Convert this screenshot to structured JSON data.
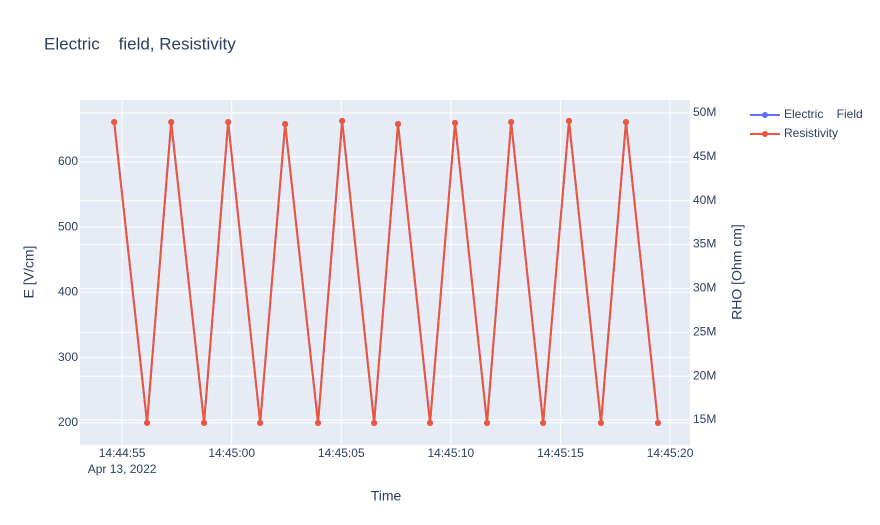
{
  "chart_data": {
    "type": "line",
    "title": "Electric    field, Resistivity",
    "x_label": "Time",
    "y_label": "E [V/cm]",
    "y2_label": "RHO [Ohm cm]",
    "x": [
      "2022-04-13 14:44:54.64",
      "2022-04-13 14:44:56.14",
      "2022-04-13 14:44:57.24",
      "2022-04-13 14:44:58.74",
      "2022-04-13 14:44:59.84",
      "2022-04-13 14:45:01.30",
      "2022-04-13 14:45:02.44",
      "2022-04-13 14:45:03.94",
      "2022-04-13 14:45:05.04",
      "2022-04-13 14:45:06.50",
      "2022-04-13 14:45:07.59",
      "2022-04-13 14:45:09.05",
      "2022-04-13 14:45:10.19",
      "2022-04-13 14:45:11.65",
      "2022-04-13 14:45:12.75",
      "2022-04-13 14:45:14.21",
      "2022-04-13 14:45:15.39",
      "2022-04-13 14:45:16.85",
      "2022-04-13 14:45:17.99",
      "2022-04-13 14:45:19.45"
    ],
    "series": [
      {
        "name": "Electric    Field",
        "color": "#636efa",
        "values": [
          661,
          200,
          661,
          200,
          661,
          200,
          658,
          200,
          663,
          200,
          658,
          200,
          660,
          200,
          661,
          200,
          663,
          200,
          661,
          200
        ]
      },
      {
        "name": "Resistivity",
        "color": "#ef553b",
        "axis": "y2",
        "values": [
          48970000,
          14660000,
          48970000,
          14660000,
          48970000,
          14660000,
          48750000,
          14660000,
          49080000,
          14660000,
          48750000,
          14660000,
          48860000,
          14660000,
          48970000,
          14660000,
          49080000,
          14660000,
          48970000,
          14660000
        ]
      }
    ],
    "xlim": [
      "2022-04-13 14:44:53.08",
      "2022-04-13 14:45:20.91"
    ],
    "xticks": [
      {
        "value": "2022-04-13 14:44:55",
        "label": "14:44:55",
        "sublabel": "Apr 13, 2022"
      },
      {
        "value": "2022-04-13 14:45:00",
        "label": "14:45:00"
      },
      {
        "value": "2022-04-13 14:45:05",
        "label": "14:45:05"
      },
      {
        "value": "2022-04-13 14:45:10",
        "label": "14:45:10"
      },
      {
        "value": "2022-04-13 14:45:15",
        "label": "14:45:15"
      },
      {
        "value": "2022-04-13 14:45:20",
        "label": "14:45:20"
      }
    ],
    "ylim": [
      166,
      695
    ],
    "yticks": [
      200,
      300,
      400,
      500,
      600
    ],
    "y2lim": [
      12150000,
      51480000
    ],
    "y2ticks": [
      {
        "value": 15000000,
        "label": "15M"
      },
      {
        "value": 20000000,
        "label": "20M"
      },
      {
        "value": 25000000,
        "label": "25M"
      },
      {
        "value": 30000000,
        "label": "30M"
      },
      {
        "value": 35000000,
        "label": "35M"
      },
      {
        "value": 40000000,
        "label": "40M"
      },
      {
        "value": 45000000,
        "label": "45M"
      },
      {
        "value": 50000000,
        "label": "50M"
      }
    ],
    "grid": true
  }
}
